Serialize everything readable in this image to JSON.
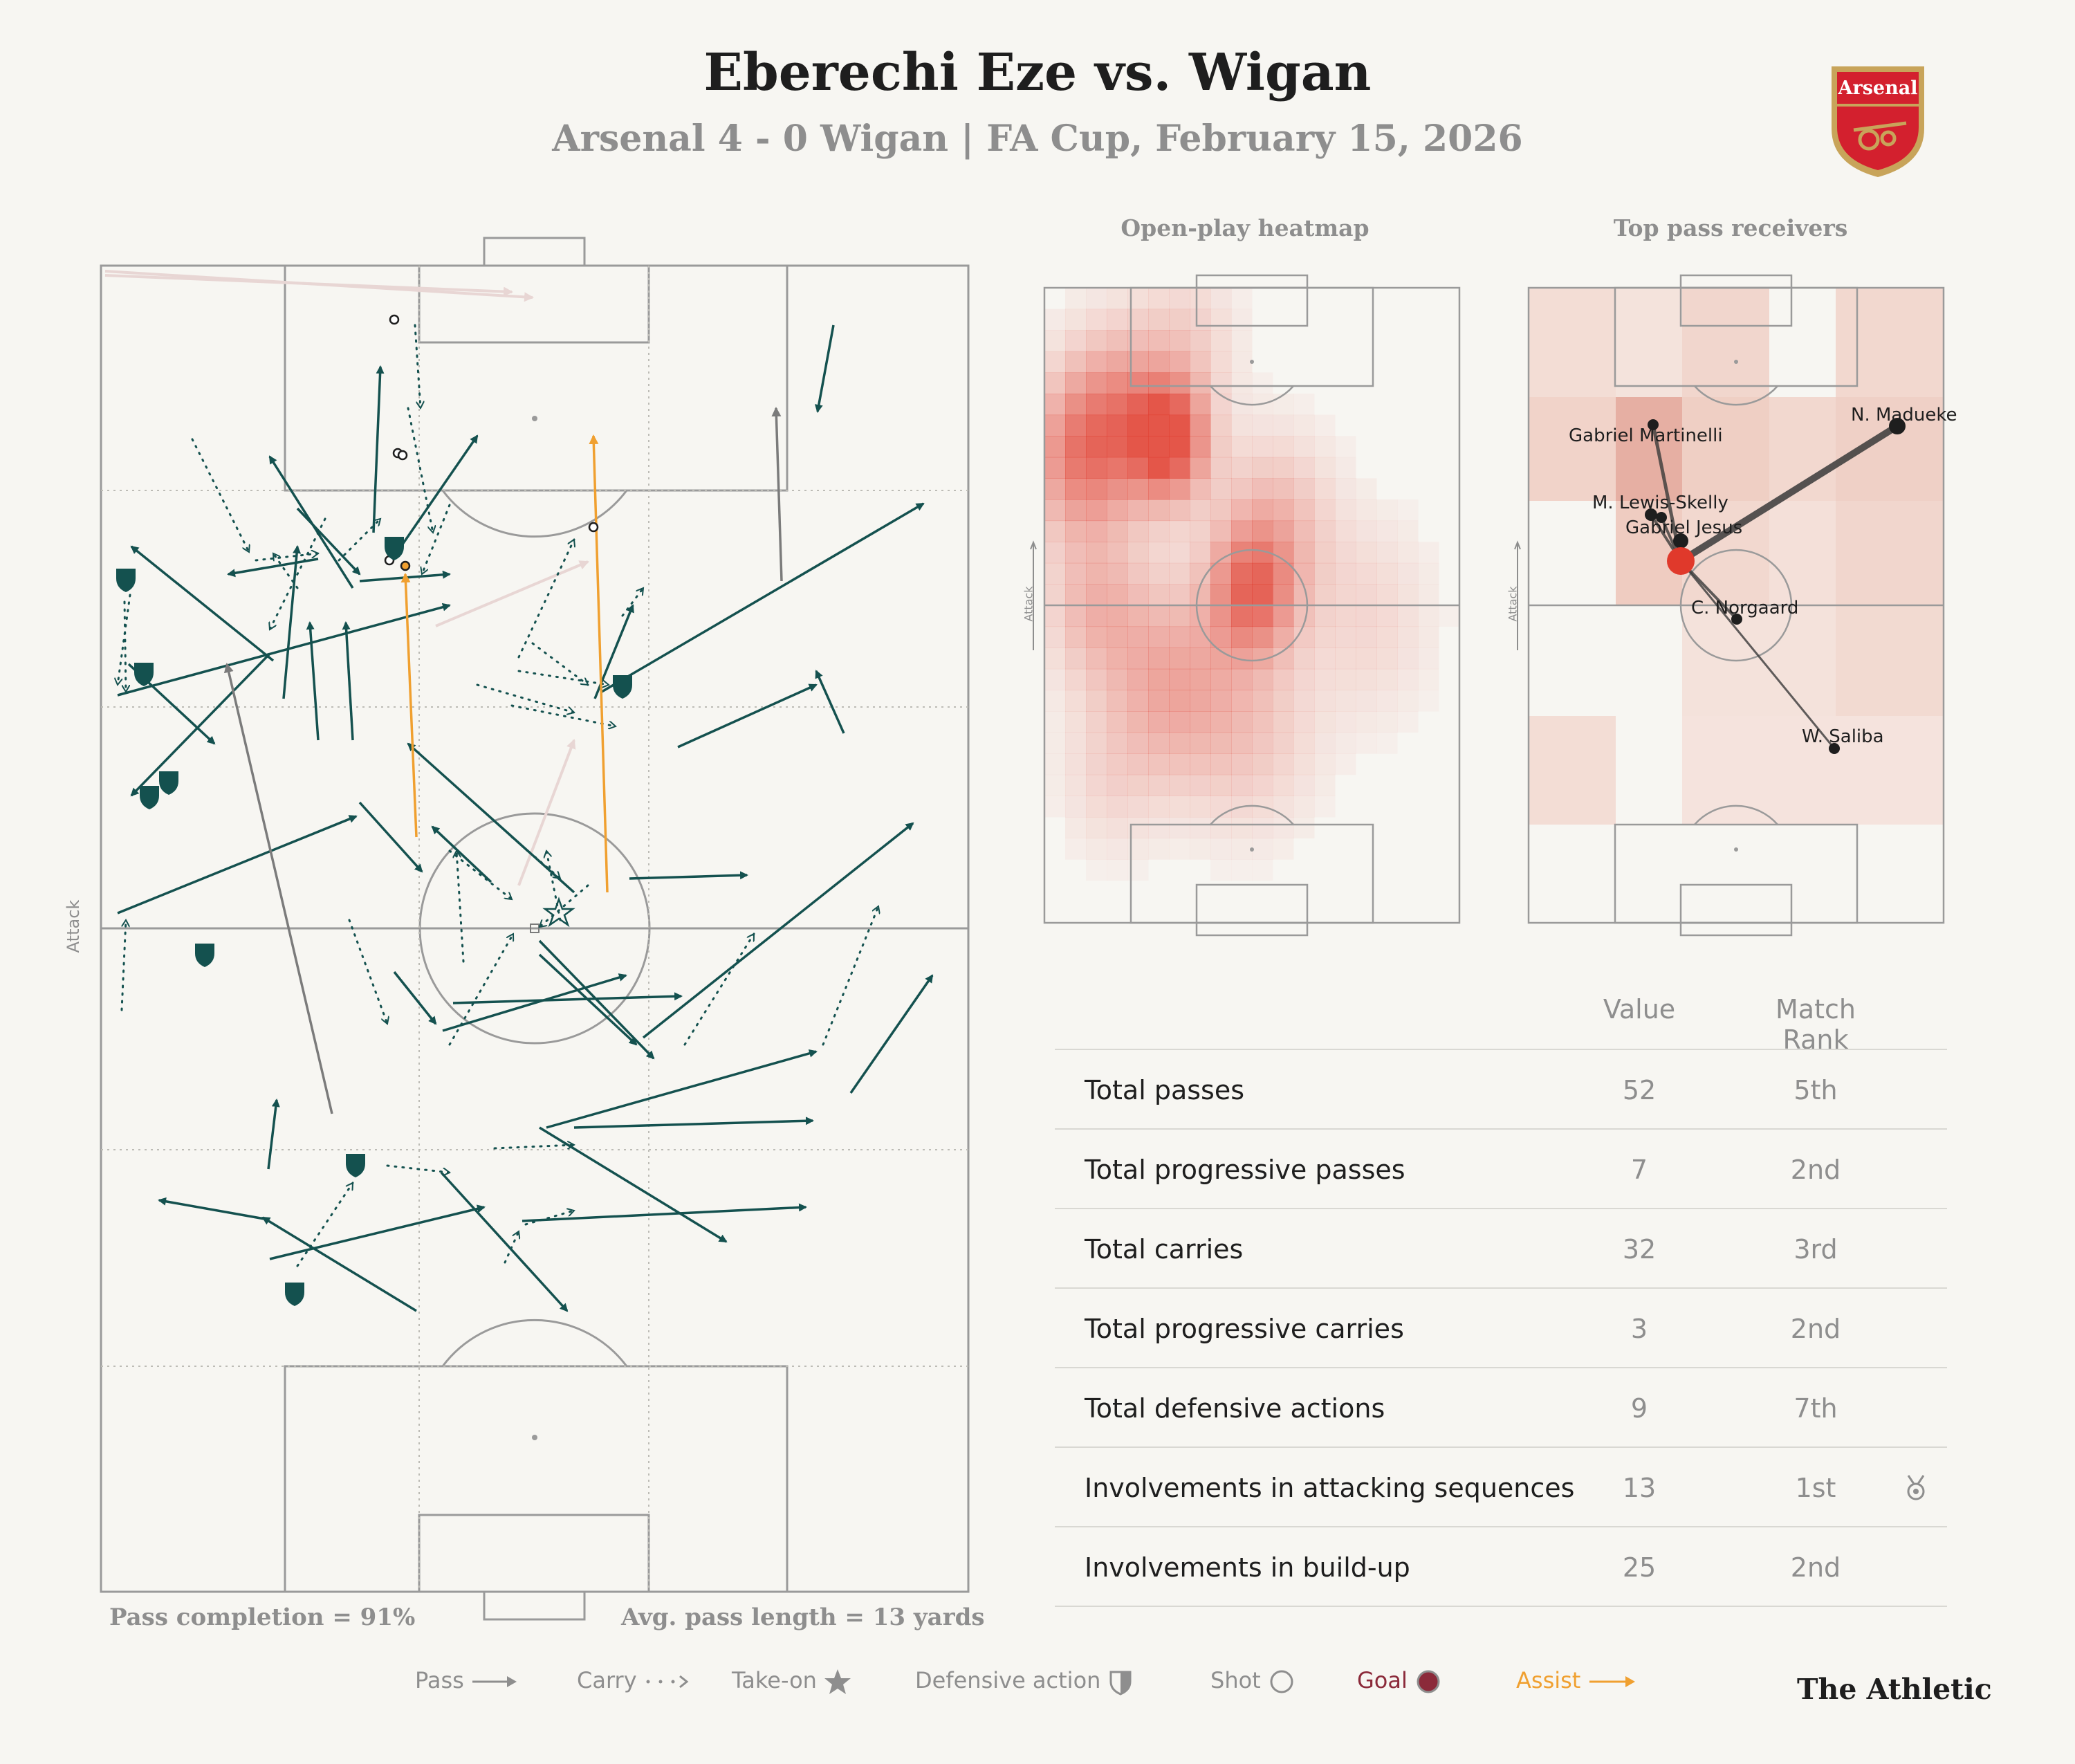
{
  "header": {
    "title": "Eberechi Eze vs. Wigan",
    "subtitle": "Arsenal 4 - 0 Wigan | FA Cup, February 15, 2026",
    "crest_text": "Arsenal"
  },
  "main_pitch": {
    "attack_label": "Attack",
    "pass_completion": "Pass completion = 91%",
    "avg_pass_length": "Avg. pass length = 13 yards"
  },
  "heatmap": {
    "title": "Open-play heatmap",
    "attack_label": "Attack"
  },
  "receivers": {
    "title": "Top pass receivers",
    "attack_label": "Attack",
    "players": [
      {
        "name": "Gabriel Martinelli"
      },
      {
        "name": "N. Madueke"
      },
      {
        "name": "M. Lewis-Skelly"
      },
      {
        "name": "Gabriel Jesus"
      },
      {
        "name": "C. Norgaard"
      },
      {
        "name": "W. Saliba"
      }
    ]
  },
  "stats": {
    "headers": {
      "value": "Value",
      "rank": "Match Rank"
    },
    "rows": [
      {
        "label": "Total passes",
        "value": "52",
        "rank": "5th"
      },
      {
        "label": "Total progressive passes",
        "value": "7",
        "rank": "2nd"
      },
      {
        "label": "Total carries",
        "value": "32",
        "rank": "3rd"
      },
      {
        "label": "Total progressive carries",
        "value": "3",
        "rank": "2nd"
      },
      {
        "label": "Total defensive actions",
        "value": "9",
        "rank": "7th"
      },
      {
        "label": "Involvements in attacking sequences",
        "value": "13",
        "rank": "1st",
        "medal": "medal-icon"
      },
      {
        "label": "Involvements in build-up",
        "value": "25",
        "rank": "2nd"
      }
    ]
  },
  "legend": {
    "pass": "Pass",
    "carry": "Carry",
    "take_on": "Take-on",
    "defensive_action": "Defensive action",
    "shot": "Shot",
    "goal": "Goal",
    "assist": "Assist"
  },
  "brand": "The Athletic",
  "colors": {
    "pass": "#14514f",
    "assist": "#f0a030",
    "goal": "#8b2a3a",
    "heat": "#e0392b",
    "muted": "#8e8e8e",
    "pitch_line": "#9a9a9a"
  }
}
